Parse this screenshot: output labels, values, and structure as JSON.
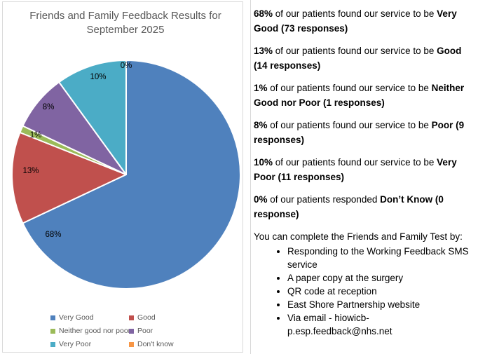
{
  "chart_data": {
    "type": "pie",
    "title": "Friends and Family Feedback Results for September 2025",
    "categories": [
      "Very Good",
      "Good",
      "Neither good nor poor",
      "Poor",
      "Very Poor",
      "Don't know"
    ],
    "values": [
      68,
      13,
      1,
      8,
      10,
      0
    ],
    "counts": [
      73,
      14,
      1,
      9,
      11,
      0
    ],
    "labels": [
      "68%",
      "13%",
      "1%",
      "8%",
      "10%",
      "0%"
    ],
    "colors": [
      "#4F81BD",
      "#C0504D",
      "#9BBB59",
      "#8064A2",
      "#4BACC6",
      "#F79646"
    ],
    "slice_border_color": "#ffffff",
    "title_color": "#595959",
    "legend_text_color": "#595959",
    "panel_border_color": "#d9d9d9",
    "legend_position": "bottom",
    "grid": "off"
  },
  "text_panel": {
    "stats": [
      {
        "pct": "68%",
        "text": " of our patients found our service to be ",
        "bold": "Very Good (73 responses)"
      },
      {
        "pct": "13%",
        "text": " of our patients found our service to be ",
        "bold": "Good (14 responses)"
      },
      {
        "pct": "1%",
        "text": " of our patients found our service to be ",
        "bold": "Neither Good nor Poor (1 responses)"
      },
      {
        "pct": "8%",
        "text": " of our patients found our service to be ",
        "bold": "Poor (9 responses)"
      },
      {
        "pct": "10%",
        "text": " of our patients found our service to be ",
        "bold": "Very Poor (11 responses)"
      },
      {
        "pct": "0%",
        "text": " of our patients responded ",
        "bold": "Don’t Know (0 response)"
      }
    ],
    "intro": "You can complete the Friends and Family Test by:",
    "bullets": [
      "Responding to the Working Feedback SMS service",
      "A paper copy at the surgery",
      "QR code at reception",
      "East Shore Partnership website",
      "Via email - hiowicb-p.esp.feedback@nhs.net"
    ]
  }
}
